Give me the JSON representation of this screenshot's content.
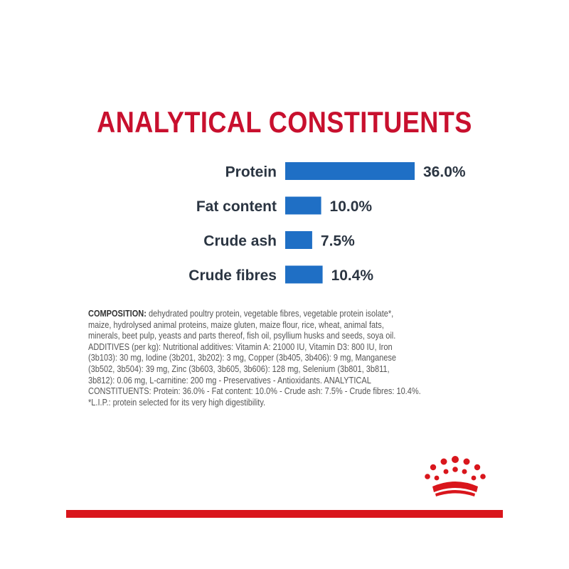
{
  "title": "ANALYTICAL CONSTITUENTS",
  "colors": {
    "title": "#c8102e",
    "bar": "#1f6fc5",
    "label": "#2b3542",
    "footer_bar": "#d9161c"
  },
  "chart_data": {
    "type": "bar",
    "orientation": "horizontal",
    "categories": [
      "Protein",
      "Fat content",
      "Crude ash",
      "Crude fibres"
    ],
    "values": [
      36.0,
      10.0,
      7.5,
      10.4
    ],
    "value_labels": [
      "36.0%",
      "10.0%",
      "7.5%",
      "10.4%"
    ],
    "title": "ANALYTICAL CONSTITUENTS",
    "xlabel": "",
    "ylabel": "",
    "grid": false
  },
  "composition": {
    "heading": "COMPOSITION:",
    "lines": [
      " dehydrated poultry protein, vegetable fibres, vegetable protein isolate*,",
      "maize, hydrolysed animal proteins, maize gluten, maize flour, rice, wheat, animal fats,",
      "minerals, beet pulp, yeasts and parts thereof, fish oil, psyllium husks and seeds, soya oil.",
      "ADDITIVES (per kg): Nutritional additives: Vitamin A: 21000 IU, Vitamin D3: 800 IU, Iron",
      "(3b103): 30 mg, Iodine (3b201, 3b202): 3 mg, Copper (3b405, 3b406): 9 mg, Manganese",
      "(3b502, 3b504): 39 mg, Zinc (3b603, 3b605, 3b606): 128 mg, Selenium (3b801, 3b811,",
      "3b812): 0.06 mg, L-carnitine: 200 mg - Preservatives - Antioxidants. ANALYTICAL",
      "CONSTITUENTS: Protein: 36.0% - Fat content: 10.0% - Crude ash: 7.5% - Crude fibres: 10.4%.",
      "*L.I.P.: protein selected for its very high digestibility."
    ]
  },
  "logo": {
    "icon": "royal-crown-icon"
  }
}
